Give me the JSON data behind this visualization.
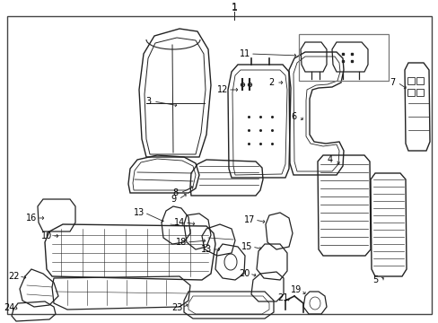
{
  "bg_color": "#ffffff",
  "border_color": "#444444",
  "line_color": "#222222",
  "label_color": "#000000",
  "fig_w": 4.89,
  "fig_h": 3.6,
  "dpi": 100
}
